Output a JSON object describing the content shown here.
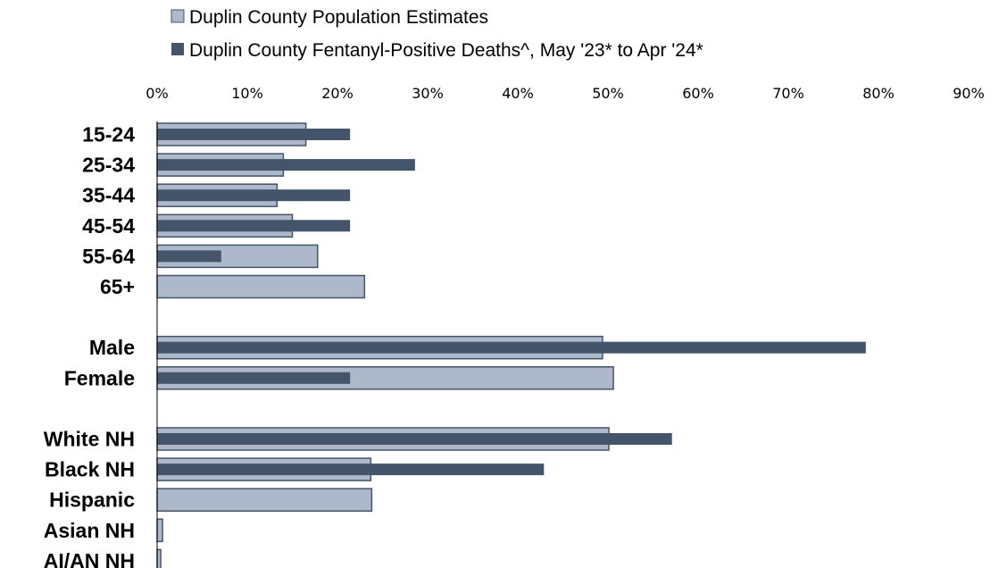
{
  "chart_data": {
    "type": "bar",
    "orientation": "horizontal",
    "categories": [
      "15-24",
      "25-34",
      "35-44",
      "45-54",
      "55-64",
      "65+",
      "",
      "Male",
      "Female",
      "",
      "White NH",
      "Black NH",
      "Hispanic",
      "Asian NH",
      "AI/AN NH"
    ],
    "series": [
      {
        "name": "Duplin County Population Estimates",
        "color": "#adb9ca",
        "values": [
          16.5,
          14.0,
          13.3,
          15.0,
          17.8,
          23.0,
          null,
          49.4,
          50.6,
          null,
          50.1,
          23.7,
          23.8,
          0.6,
          0.4
        ]
      },
      {
        "name": "Duplin County Fentanyl-Positive Deaths^, May '23* to Apr '24*",
        "color": "#44546a",
        "values": [
          21.4,
          28.6,
          21.4,
          21.4,
          7.1,
          0,
          null,
          78.6,
          21.4,
          null,
          57.1,
          42.9,
          0,
          0,
          0
        ]
      }
    ],
    "x_ticks": [
      "0%",
      "10%",
      "20%",
      "30%",
      "40%",
      "50%",
      "60%",
      "70%",
      "80%",
      "90%"
    ],
    "xlim": [
      0,
      90
    ],
    "x_axis_position": "top",
    "legend_position": "top",
    "grid": false
  }
}
